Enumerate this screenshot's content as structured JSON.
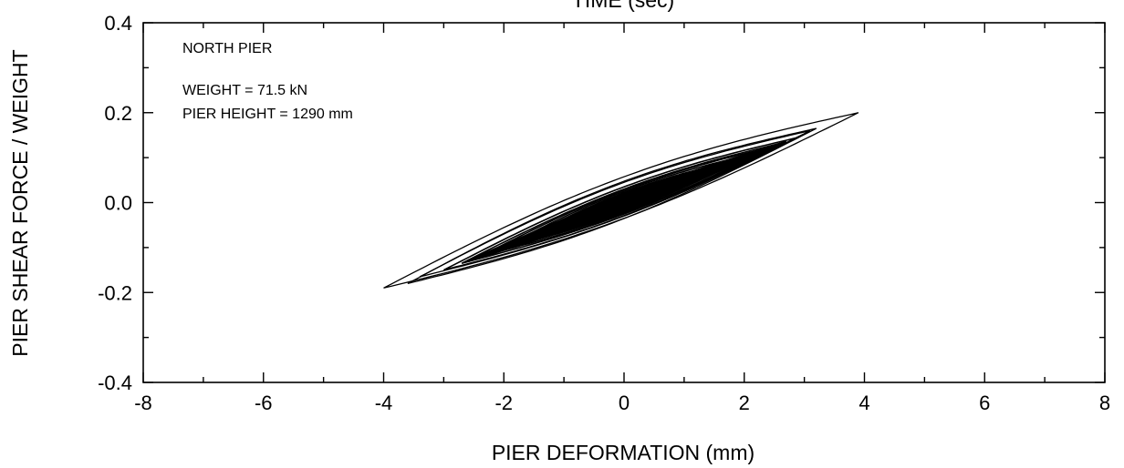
{
  "top_cutoff_text": "TIME (sec)",
  "chart_data": {
    "type": "line",
    "title": "",
    "xlabel": "PIER DEFORMATION (mm)",
    "ylabel": "PIER SHEAR FORCE / WEIGHT",
    "xlim": [
      -8,
      8
    ],
    "ylim": [
      -0.4,
      0.4
    ],
    "x_ticks": [
      -8,
      -6,
      -4,
      -2,
      0,
      2,
      4,
      6,
      8
    ],
    "x_tick_labels": [
      "-8",
      "-6",
      "-4",
      "-2",
      "0",
      "2",
      "4",
      "6",
      "8"
    ],
    "y_ticks": [
      -0.4,
      -0.2,
      0.0,
      0.2,
      0.4
    ],
    "y_tick_labels": [
      "-0.4",
      "-0.2",
      "0.0",
      "0.2",
      "0.4"
    ],
    "grid": false,
    "annotations": [
      "NORTH PIER",
      "WEIGHT = 71.5 kN",
      "PIER HEIGHT = 1290 mm"
    ],
    "series": [
      {
        "loops": [
          {
            "xmin": -4.0,
            "ymin": -0.19,
            "xmax": 3.9,
            "ymax": 0.2,
            "width": 0.05
          },
          {
            "xmin": -3.6,
            "ymin": -0.18,
            "xmax": 3.2,
            "ymax": 0.165,
            "width": 0.045
          },
          {
            "xmin": -3.4,
            "ymin": -0.165,
            "xmax": 3.1,
            "ymax": 0.16,
            "width": 0.04
          },
          {
            "xmin": -3.0,
            "ymin": -0.15,
            "xmax": 2.9,
            "ymax": 0.145,
            "width": 0.035
          },
          {
            "xmin": -2.7,
            "ymin": -0.135,
            "xmax": 2.7,
            "ymax": 0.135,
            "width": 0.03
          },
          {
            "xmin": -2.4,
            "ymin": -0.12,
            "xmax": 2.5,
            "ymax": 0.125,
            "width": 0.028
          },
          {
            "xmin": -2.1,
            "ymin": -0.105,
            "xmax": 2.2,
            "ymax": 0.11,
            "width": 0.025
          },
          {
            "xmin": -1.8,
            "ymin": -0.09,
            "xmax": 1.9,
            "ymax": 0.095,
            "width": 0.022
          },
          {
            "xmin": -1.5,
            "ymin": -0.075,
            "xmax": 1.6,
            "ymax": 0.08,
            "width": 0.02
          },
          {
            "xmin": -1.2,
            "ymin": -0.06,
            "xmax": 1.3,
            "ymax": 0.065,
            "width": 0.018
          },
          {
            "xmin": -0.9,
            "ymin": -0.045,
            "xmax": 1.0,
            "ymax": 0.05,
            "width": 0.015
          },
          {
            "xmin": -0.6,
            "ymin": -0.03,
            "xmax": 0.7,
            "ymax": 0.035,
            "width": 0.012
          }
        ]
      }
    ]
  }
}
